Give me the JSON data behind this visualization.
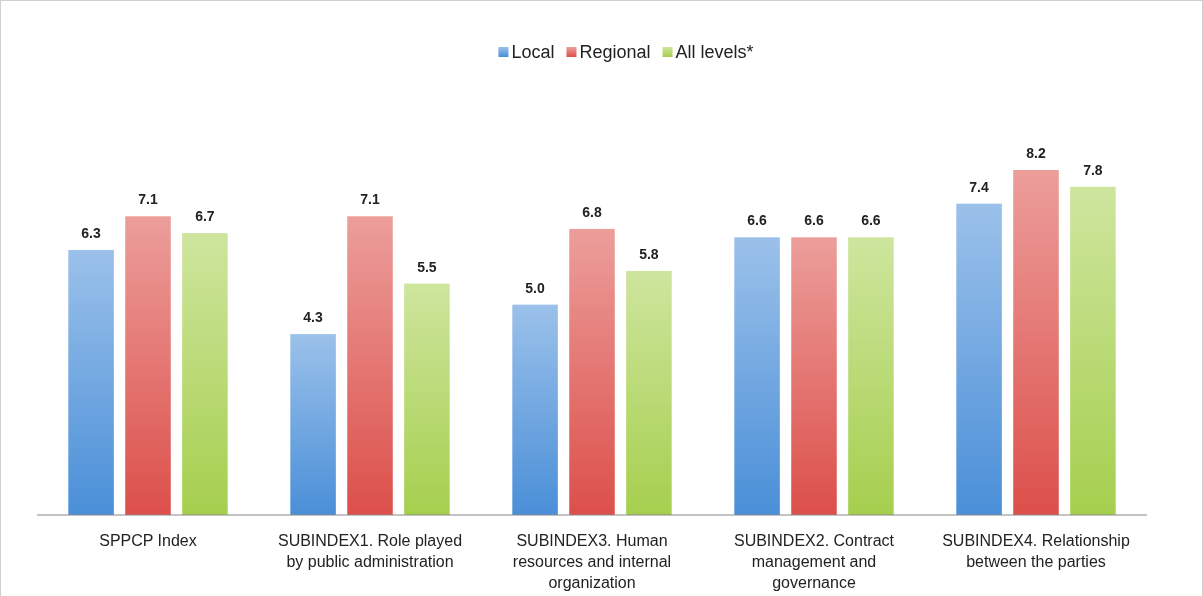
{
  "chart_data": {
    "type": "bar",
    "categories": [
      "SPPCP Index",
      "SUBINDEX1. Role played by public administration",
      "SUBINDEX3. Human resources and internal organization",
      "SUBINDEX2. Contract management and governance",
      "SUBINDEX4. Relationship between the parties"
    ],
    "series": [
      {
        "name": "Local",
        "color": "#4a8fd8",
        "values": [
          6.3,
          4.3,
          5.0,
          6.6,
          7.4
        ],
        "value_labels": [
          "6.3",
          "4.3",
          "5.0",
          "6.6",
          "7.4"
        ]
      },
      {
        "name": "Regional",
        "color": "#dc4f4a",
        "values": [
          7.1,
          7.1,
          6.8,
          6.6,
          8.2
        ],
        "value_labels": [
          "7.1",
          "7.1",
          "6.8",
          "6.6",
          "8.2"
        ]
      },
      {
        "name": "All levels*",
        "color": "#a6cf4e",
        "values": [
          6.7,
          5.5,
          5.8,
          6.6,
          7.8
        ],
        "value_labels": [
          "6.7",
          "5.5",
          "5.8",
          "6.6",
          "7.8"
        ]
      }
    ],
    "tick_labels": "x",
    "legend": "top"
  }
}
